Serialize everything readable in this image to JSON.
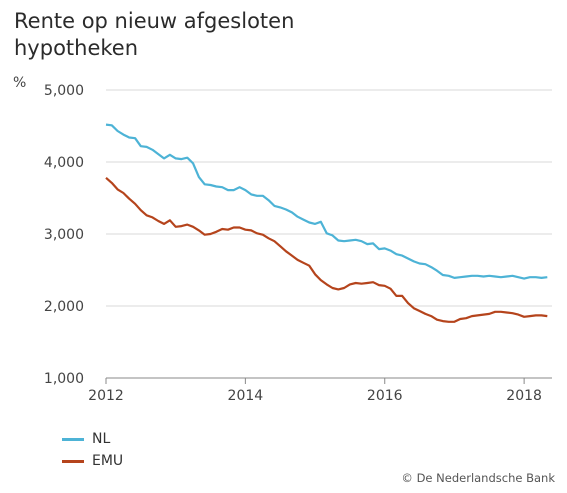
{
  "title_lines": [
    "Rente op nieuw afgesloten",
    "hypotheken"
  ],
  "unit_label": "%",
  "copyright": "© De Nederlandsche Bank",
  "colors": {
    "NL": "#4db3d6",
    "EMU": "#b5441c",
    "axis": "#888888",
    "grid": "#d9d9d9"
  },
  "chart_data": {
    "type": "line",
    "title": "Rente op nieuw afgesloten hypotheken",
    "ylabel": "%",
    "xlabel": "",
    "ylim": [
      1000,
      5000
    ],
    "xlim": [
      2012.0,
      2018.4
    ],
    "yticks": [
      1000,
      2000,
      3000,
      4000,
      5000
    ],
    "ytick_labels": [
      "1,000",
      "2,000",
      "3,000",
      "4,000",
      "5,000"
    ],
    "xticks": [
      2012,
      2014,
      2016,
      2018
    ],
    "xtick_labels": [
      "2012",
      "2014",
      "2016",
      "2018"
    ],
    "grid": "horizontal",
    "legend_position": "bottom-left",
    "series": [
      {
        "name": "NL",
        "x": [
          2012.0,
          2012.083,
          2012.167,
          2012.25,
          2012.333,
          2012.417,
          2012.5,
          2012.583,
          2012.667,
          2012.75,
          2012.833,
          2012.917,
          2013.0,
          2013.083,
          2013.167,
          2013.25,
          2013.333,
          2013.417,
          2013.5,
          2013.583,
          2013.667,
          2013.75,
          2013.833,
          2013.917,
          2014.0,
          2014.083,
          2014.167,
          2014.25,
          2014.333,
          2014.417,
          2014.5,
          2014.583,
          2014.667,
          2014.75,
          2014.833,
          2014.917,
          2015.0,
          2015.083,
          2015.167,
          2015.25,
          2015.333,
          2015.417,
          2015.5,
          2015.583,
          2015.667,
          2015.75,
          2015.833,
          2015.917,
          2016.0,
          2016.083,
          2016.167,
          2016.25,
          2016.333,
          2016.417,
          2016.5,
          2016.583,
          2016.667,
          2016.75,
          2016.833,
          2016.917,
          2017.0,
          2017.083,
          2017.167,
          2017.25,
          2017.333,
          2017.417,
          2017.5,
          2017.583,
          2017.667,
          2017.75,
          2017.833,
          2017.917,
          2018.0,
          2018.083,
          2018.167,
          2018.25,
          2018.333
        ],
        "values": [
          4520,
          4510,
          4430,
          4380,
          4340,
          4330,
          4220,
          4210,
          4170,
          4110,
          4050,
          4100,
          4050,
          4040,
          4060,
          3980,
          3790,
          3690,
          3680,
          3660,
          3650,
          3610,
          3610,
          3650,
          3610,
          3550,
          3530,
          3530,
          3470,
          3390,
          3370,
          3340,
          3300,
          3240,
          3200,
          3160,
          3140,
          3170,
          3010,
          2980,
          2910,
          2900,
          2910,
          2920,
          2900,
          2860,
          2870,
          2790,
          2800,
          2770,
          2720,
          2700,
          2660,
          2620,
          2590,
          2580,
          2540,
          2490,
          2430,
          2420,
          2390,
          2400,
          2410,
          2420,
          2420,
          2410,
          2420,
          2410,
          2400,
          2410,
          2420,
          2400,
          2380,
          2400,
          2400,
          2390,
          2400
        ]
      },
      {
        "name": "EMU",
        "x": [
          2012.0,
          2012.083,
          2012.167,
          2012.25,
          2012.333,
          2012.417,
          2012.5,
          2012.583,
          2012.667,
          2012.75,
          2012.833,
          2012.917,
          2013.0,
          2013.083,
          2013.167,
          2013.25,
          2013.333,
          2013.417,
          2013.5,
          2013.583,
          2013.667,
          2013.75,
          2013.833,
          2013.917,
          2014.0,
          2014.083,
          2014.167,
          2014.25,
          2014.333,
          2014.417,
          2014.5,
          2014.583,
          2014.667,
          2014.75,
          2014.833,
          2014.917,
          2015.0,
          2015.083,
          2015.167,
          2015.25,
          2015.333,
          2015.417,
          2015.5,
          2015.583,
          2015.667,
          2015.75,
          2015.833,
          2015.917,
          2016.0,
          2016.083,
          2016.167,
          2016.25,
          2016.333,
          2016.417,
          2016.5,
          2016.583,
          2016.667,
          2016.75,
          2016.833,
          2016.917,
          2017.0,
          2017.083,
          2017.167,
          2017.25,
          2017.333,
          2017.417,
          2017.5,
          2017.583,
          2017.667,
          2017.75,
          2017.833,
          2017.917,
          2018.0,
          2018.083,
          2018.167,
          2018.25,
          2018.333
        ],
        "values": [
          3780,
          3710,
          3620,
          3570,
          3490,
          3420,
          3330,
          3260,
          3230,
          3180,
          3140,
          3190,
          3100,
          3110,
          3130,
          3100,
          3050,
          2990,
          3000,
          3030,
          3070,
          3060,
          3090,
          3090,
          3060,
          3050,
          3010,
          2990,
          2940,
          2900,
          2830,
          2760,
          2700,
          2640,
          2600,
          2560,
          2440,
          2360,
          2300,
          2250,
          2230,
          2250,
          2300,
          2320,
          2310,
          2320,
          2330,
          2290,
          2280,
          2240,
          2140,
          2140,
          2040,
          1970,
          1930,
          1890,
          1860,
          1810,
          1790,
          1780,
          1780,
          1820,
          1830,
          1860,
          1870,
          1880,
          1890,
          1920,
          1920,
          1910,
          1900,
          1880,
          1850,
          1860,
          1870,
          1870,
          1860
        ]
      }
    ]
  }
}
